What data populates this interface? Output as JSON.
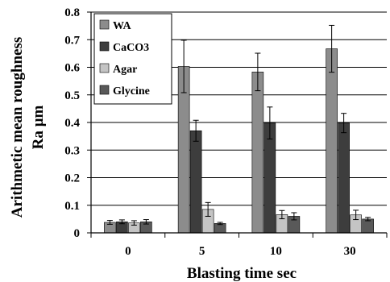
{
  "chart_data": {
    "type": "bar",
    "title": "",
    "xlabel": "Blasting time   sec",
    "ylabel_line1": "Arithmetic mean roughness",
    "ylabel_line2": "Ra µm",
    "categories": [
      "0",
      "5",
      "10",
      "30"
    ],
    "ylim": [
      0,
      0.8
    ],
    "yticks": [
      "0",
      "0.1",
      "0.2",
      "0.3",
      "0.4",
      "0.5",
      "0.6",
      "0.7",
      "0.8"
    ],
    "grid": true,
    "legend_position": "top-left",
    "series": [
      {
        "name": "WA",
        "color": "#8c8c8c",
        "values": [
          0.038,
          0.603,
          0.583,
          0.667
        ],
        "errors": [
          0.007,
          0.095,
          0.068,
          0.085
        ]
      },
      {
        "name": "CaCO3",
        "color": "#3d3d3d",
        "values": [
          0.04,
          0.37,
          0.398,
          0.398
        ],
        "errors": [
          0.007,
          0.038,
          0.058,
          0.035
        ]
      },
      {
        "name": "Agar",
        "color": "#c4c4c4",
        "values": [
          0.036,
          0.085,
          0.066,
          0.065
        ],
        "errors": [
          0.008,
          0.025,
          0.015,
          0.017
        ]
      },
      {
        "name": "Glycine",
        "color": "#595959",
        "values": [
          0.04,
          0.034,
          0.06,
          0.05
        ],
        "errors": [
          0.008,
          0.004,
          0.013,
          0.006
        ]
      }
    ]
  }
}
